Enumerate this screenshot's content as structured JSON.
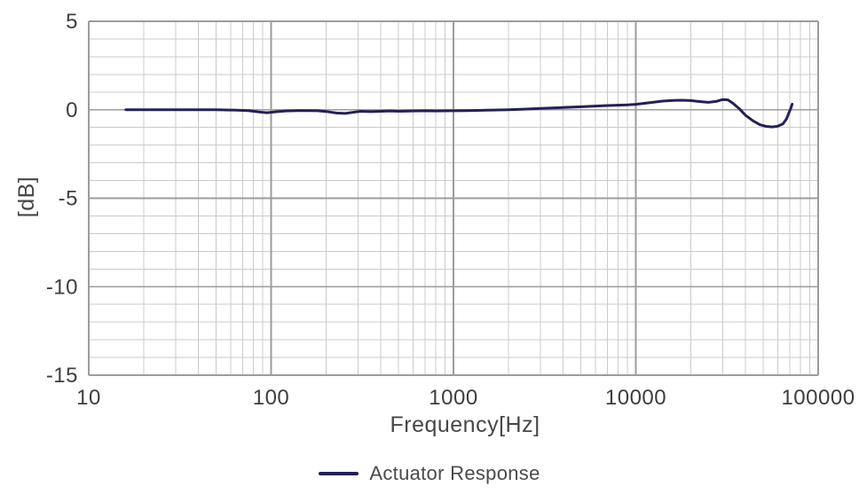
{
  "chart_data": {
    "type": "line",
    "title": "",
    "xlabel": "Frequency[Hz]",
    "ylabel": "[dB]",
    "x_scale": "log",
    "xlim": [
      10,
      100000
    ],
    "ylim": [
      -15,
      5
    ],
    "x_ticks": [
      10,
      100,
      1000,
      10000,
      100000
    ],
    "x_tick_labels": [
      "10",
      "100",
      "1000",
      "10000",
      "100000"
    ],
    "y_ticks": [
      5,
      0,
      -5,
      -10,
      -15
    ],
    "y_tick_labels": [
      "5",
      "0",
      "-5",
      "-10",
      "-15"
    ],
    "y_minor_step": 1,
    "grid": "major and minor, log-decade minors on x, 1 dB minors on y",
    "legend_position": "bottom-center",
    "series": [
      {
        "name": "Actuator Response",
        "color": "#232058",
        "points": [
          [
            16,
            0.0
          ],
          [
            20,
            0.0
          ],
          [
            25,
            0.0
          ],
          [
            32,
            0.0
          ],
          [
            40,
            0.0
          ],
          [
            50,
            0.0
          ],
          [
            63,
            -0.02
          ],
          [
            75,
            -0.05
          ],
          [
            85,
            -0.12
          ],
          [
            95,
            -0.17
          ],
          [
            105,
            -0.12
          ],
          [
            120,
            -0.07
          ],
          [
            140,
            -0.05
          ],
          [
            160,
            -0.05
          ],
          [
            180,
            -0.06
          ],
          [
            200,
            -0.1
          ],
          [
            230,
            -0.19
          ],
          [
            255,
            -0.21
          ],
          [
            280,
            -0.15
          ],
          [
            310,
            -0.09
          ],
          [
            350,
            -0.11
          ],
          [
            400,
            -0.09
          ],
          [
            450,
            -0.07
          ],
          [
            500,
            -0.09
          ],
          [
            600,
            -0.07
          ],
          [
            700,
            -0.06
          ],
          [
            800,
            -0.07
          ],
          [
            1000,
            -0.06
          ],
          [
            1200,
            -0.05
          ],
          [
            1500,
            -0.03
          ],
          [
            2000,
            0.0
          ],
          [
            2500,
            0.04
          ],
          [
            3000,
            0.08
          ],
          [
            4000,
            0.13
          ],
          [
            5000,
            0.17
          ],
          [
            6000,
            0.21
          ],
          [
            7000,
            0.24
          ],
          [
            8000,
            0.26
          ],
          [
            9000,
            0.28
          ],
          [
            10000,
            0.31
          ],
          [
            11000,
            0.36
          ],
          [
            12500,
            0.43
          ],
          [
            14000,
            0.49
          ],
          [
            16000,
            0.53
          ],
          [
            18000,
            0.54
          ],
          [
            20000,
            0.52
          ],
          [
            22000,
            0.47
          ],
          [
            25000,
            0.42
          ],
          [
            27500,
            0.47
          ],
          [
            30000,
            0.58
          ],
          [
            32000,
            0.56
          ],
          [
            34000,
            0.38
          ],
          [
            37000,
            0.05
          ],
          [
            40000,
            -0.32
          ],
          [
            44000,
            -0.63
          ],
          [
            48000,
            -0.85
          ],
          [
            52000,
            -0.94
          ],
          [
            56000,
            -0.97
          ],
          [
            60000,
            -0.93
          ],
          [
            64000,
            -0.8
          ],
          [
            67000,
            -0.52
          ],
          [
            69500,
            -0.12
          ],
          [
            71000,
            0.12
          ],
          [
            72000,
            0.32
          ]
        ]
      }
    ]
  },
  "style": {
    "background": "#ffffff",
    "grid_minor_color": "#cbcbcb",
    "grid_major_color": "#9c9c9c",
    "tick_label_color": "#3e3e3e",
    "axis_title_color": "#474747",
    "legend_text_color": "#4a4a4a",
    "series_color": "#232058"
  }
}
